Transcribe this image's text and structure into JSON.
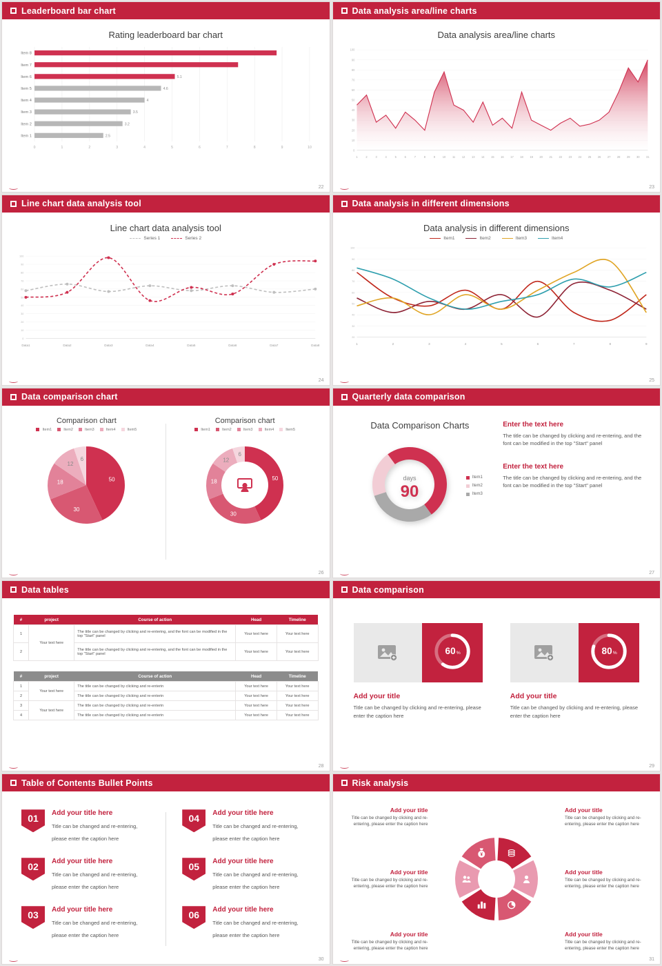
{
  "colors": {
    "accent": "#c2223e",
    "red": "#cf3150",
    "red_mid": "#d85872",
    "red_light": "#e28299",
    "red_pale": "#ecadbd",
    "red_faint": "#f5d6de",
    "gray_bar": "#b7b7b7",
    "gray_head": "#8c8c8c",
    "gray_seg": "#a9a9a9",
    "gold": "#e0a526",
    "teal": "#2f9fae",
    "maroon": "#8e2436",
    "line_red": "#c0281c"
  },
  "slides": [
    {
      "header": "Leaderboard bar chart",
      "page": "22",
      "title": "Rating leaderboard bar chart",
      "chart_data": {
        "type": "bar",
        "orientation": "horizontal",
        "categories": [
          "Item 8",
          "Item 7",
          "Item 6",
          "Item 5",
          "Item 4",
          "Item 3",
          "Item 2",
          "Item 1"
        ],
        "values": [
          8.8,
          7.4,
          5.1,
          4.6,
          4,
          3.5,
          3.2,
          2.5
        ],
        "value_labels": [
          "",
          "",
          "5.1",
          "4.6",
          "4",
          "3.5",
          "3.2",
          "2.5"
        ],
        "bar_colors": [
          "#cf3150",
          "#cf3150",
          "#cf3150",
          "#b7b7b7",
          "#b7b7b7",
          "#b7b7b7",
          "#b7b7b7",
          "#b7b7b7"
        ],
        "xlim": [
          0,
          10
        ],
        "xticks": [
          0,
          1,
          2,
          3,
          4,
          5,
          6,
          7,
          8,
          9,
          10
        ]
      }
    },
    {
      "header": "Data analysis area/line charts",
      "page": "23",
      "title": "Data analysis area/line charts",
      "chart_data": {
        "type": "area",
        "x": [
          1,
          2,
          3,
          4,
          5,
          6,
          7,
          8,
          9,
          10,
          11,
          12,
          13,
          14,
          15,
          16,
          17,
          18,
          19,
          20,
          21,
          22,
          23,
          24,
          25,
          26,
          27,
          28,
          29,
          30,
          31
        ],
        "values": [
          45,
          55,
          28,
          35,
          22,
          38,
          30,
          20,
          58,
          78,
          45,
          40,
          28,
          48,
          25,
          32,
          22,
          58,
          30,
          25,
          20,
          27,
          32,
          24,
          26,
          30,
          38,
          58,
          82,
          68,
          90
        ],
        "color": "#cf3150",
        "ylim": [
          0,
          100
        ],
        "yticks": [
          0,
          10,
          20,
          30,
          40,
          50,
          60,
          70,
          80,
          90,
          100
        ]
      }
    },
    {
      "header": "Line chart data analysis tool",
      "page": "24",
      "title": "Line chart data analysis tool",
      "chart_data": {
        "type": "line",
        "dots": true,
        "x": [
          "Data1",
          "Data2",
          "Data3",
          "Data4",
          "Data5",
          "Data6",
          "Data7",
          "Data8"
        ],
        "ylim": [
          0,
          110
        ],
        "yticks": [
          0,
          10,
          20,
          30,
          40,
          50,
          60,
          70,
          80,
          90,
          100
        ],
        "series": [
          {
            "name": "Series 1",
            "color": "#bfbfbf",
            "dashed": true,
            "values": [
              58,
              66,
              57,
              64,
              58,
              64,
              56,
              60
            ]
          },
          {
            "name": "Series 2",
            "color": "#cf3150",
            "dashed": true,
            "values": [
              50,
              56,
              98,
              46,
              62,
              54,
              90,
              94
            ]
          }
        ]
      }
    },
    {
      "header": "Data analysis in different dimensions",
      "page": "25",
      "title": "Data analysis in different dimensions",
      "chart_data": {
        "type": "line",
        "dots": false,
        "x": [
          1,
          2,
          3,
          4,
          5,
          6,
          7,
          8,
          9
        ],
        "ylim": [
          20,
          100
        ],
        "yticks": [
          20,
          30,
          40,
          50,
          60,
          70,
          80,
          90,
          100
        ],
        "series": [
          {
            "name": "Item1",
            "color": "#c0281c",
            "values": [
              78,
              55,
              48,
              62,
              45,
              70,
              42,
              35,
              58
            ]
          },
          {
            "name": "Item2",
            "color": "#8e2436",
            "values": [
              55,
              42,
              52,
              45,
              58,
              38,
              68,
              62,
              45
            ]
          },
          {
            "name": "Item3",
            "color": "#e0a526",
            "values": [
              48,
              55,
              40,
              58,
              45,
              62,
              78,
              88,
              42
            ]
          },
          {
            "name": "Item4",
            "color": "#2f9fae",
            "values": [
              82,
              72,
              55,
              45,
              52,
              58,
              72,
              65,
              78
            ]
          }
        ]
      }
    },
    {
      "header": "Data comparison chart",
      "page": "26",
      "panels": [
        {
          "title": "Comparison chart",
          "legend": [
            "Item1",
            "Item2",
            "Item3",
            "Item4",
            "Item5"
          ],
          "chart_data": {
            "type": "pie",
            "values": [
              50,
              30,
              18,
              12,
              6
            ],
            "labels": [
              "50",
              "30",
              "18",
              "12",
              "6"
            ],
            "colors": [
              "#cf3150",
              "#d85872",
              "#e28299",
              "#ecadbd",
              "#f5d6de"
            ],
            "label_colors": [
              "#fff",
              "#fff",
              "#fff",
              "#888",
              "#888"
            ]
          }
        },
        {
          "title": "Comparison chart",
          "legend": [
            "Item1",
            "Item2",
            "Item3",
            "Item4",
            "Item5"
          ],
          "chart_data": {
            "type": "donut",
            "values": [
              50,
              30,
              18,
              12,
              6
            ],
            "labels": [
              "50",
              "30",
              "18",
              "12",
              "6"
            ],
            "colors": [
              "#cf3150",
              "#d85872",
              "#e28299",
              "#ecadbd",
              "#f5d6de"
            ],
            "label_colors": [
              "#fff",
              "#fff",
              "#fff",
              "#888",
              "#888"
            ],
            "center_icon": "presenter-icon"
          }
        }
      ]
    },
    {
      "header": "Quarterly data comparison",
      "page": "27",
      "title": "Data Comparison Charts",
      "chart_data": {
        "type": "donut",
        "center_label": "days",
        "center_value": "90",
        "start_deg": -36,
        "draw_order": [
          0,
          2,
          1
        ],
        "segments": [
          {
            "name": "Item1",
            "value": 50,
            "color": "#cf3150"
          },
          {
            "name": "Item2",
            "value": 20,
            "color": "#f2cdd5"
          },
          {
            "name": "Item3",
            "value": 30,
            "color": "#a9a9a9"
          }
        ]
      },
      "text_blocks": [
        {
          "heading": "Enter the text here",
          "body": "The title can be changed by clicking and re-entering, and the font can be modified in the top \"Start\" panel"
        },
        {
          "heading": "Enter the text here",
          "body": "The title can be changed by clicking and re-entering, and the font can be modified in the top \"Start\" panel"
        }
      ]
    },
    {
      "header": "Data tables",
      "page": "28",
      "table1": {
        "columns": [
          "#",
          "project",
          "Course of action",
          "Head",
          "Timeline"
        ],
        "rows": [
          [
            "1",
            "Your text here",
            "The title can be changed by clicking and re-entering, and the font can be modified in the top \"Start\" panel",
            "Your text here",
            "Your text here"
          ],
          [
            "2",
            "",
            "The title can be changed by clicking and re-entering, and the font can be modified in the top \"Start\" panel",
            "Your text here",
            "Your text here"
          ]
        ]
      },
      "table2": {
        "columns": [
          "#",
          "project",
          "Course of action",
          "Head",
          "Timeline"
        ],
        "rows": [
          [
            "1",
            "Your text here",
            "The title can be changed by clicking and re-enterin",
            "Your text here",
            "Your text here"
          ],
          [
            "2",
            "",
            "The title can be changed by clicking and re-enterin",
            "Your text here",
            "Your text here"
          ],
          [
            "3",
            "Your text here",
            "The title can be changed by clicking and re-enterin",
            "Your text here",
            "Your text here"
          ],
          [
            "4",
            "",
            "The title can be changed by clicking and re-enterin",
            "Your text here",
            "Your text here"
          ]
        ]
      }
    },
    {
      "header": "Data comparison",
      "page": "29",
      "cards": [
        {
          "percent": 60,
          "percent_label": "60",
          "unit": "%",
          "title": "Add your title",
          "caption": "Title can be changed by clicking and re-entering, please enter the caption here"
        },
        {
          "percent": 80,
          "percent_label": "80",
          "unit": "%",
          "title": "Add your title",
          "caption": "Title can be changed by clicking and re-entering, please enter the caption here"
        }
      ]
    },
    {
      "header": "Table of Contents Bullet Points",
      "page": "30",
      "items": [
        {
          "num": "01",
          "title": "Add your title here",
          "caption": "Title can be changed and re-entering, please enter the caption here"
        },
        {
          "num": "02",
          "title": "Add your title here",
          "caption": "Title can be changed and re-entering, please enter the caption here"
        },
        {
          "num": "03",
          "title": "Add your title here",
          "caption": "Title can be changed and re-entering, please enter the caption here"
        },
        {
          "num": "04",
          "title": "Add your title here",
          "caption": "Title can be changed and re-entering, please enter the caption here"
        },
        {
          "num": "05",
          "title": "Add your title here",
          "caption": "Title can be changed and re-entering, please enter the caption here"
        },
        {
          "num": "06",
          "title": "Add your title here",
          "caption": "Title can be changed and re-entering, please enter the caption here"
        }
      ]
    },
    {
      "header": "Risk analysis",
      "page": "31",
      "blocks": [
        {
          "heading": "Add your title",
          "body": "Title can be changed by clicking and re-entering, please enter the caption here"
        },
        {
          "heading": "Add your title",
          "body": "Title can be changed by clicking and re-entering, please enter the caption here"
        },
        {
          "heading": "Add your title",
          "body": "Title can be changed by clicking and re-entering, please enter the caption here"
        },
        {
          "heading": "Add your title",
          "body": "Title can be changed by clicking and re-entering, please enter the caption here"
        },
        {
          "heading": "Add your title",
          "body": "Title can be changed by clicking and re-entering, please enter the caption here"
        },
        {
          "heading": "Add your title",
          "body": "Title can be changed by clicking and re-entering, please enter the caption here"
        }
      ],
      "wheel_icons": [
        "coins-icon",
        "person-icon",
        "piechart-icon",
        "barchart-icon",
        "people-icon",
        "moneybag-icon"
      ],
      "wheel_colors": [
        "#c2223e",
        "#e99ab0",
        "#d85872",
        "#c2223e",
        "#e99ab0",
        "#d85872"
      ]
    }
  ]
}
